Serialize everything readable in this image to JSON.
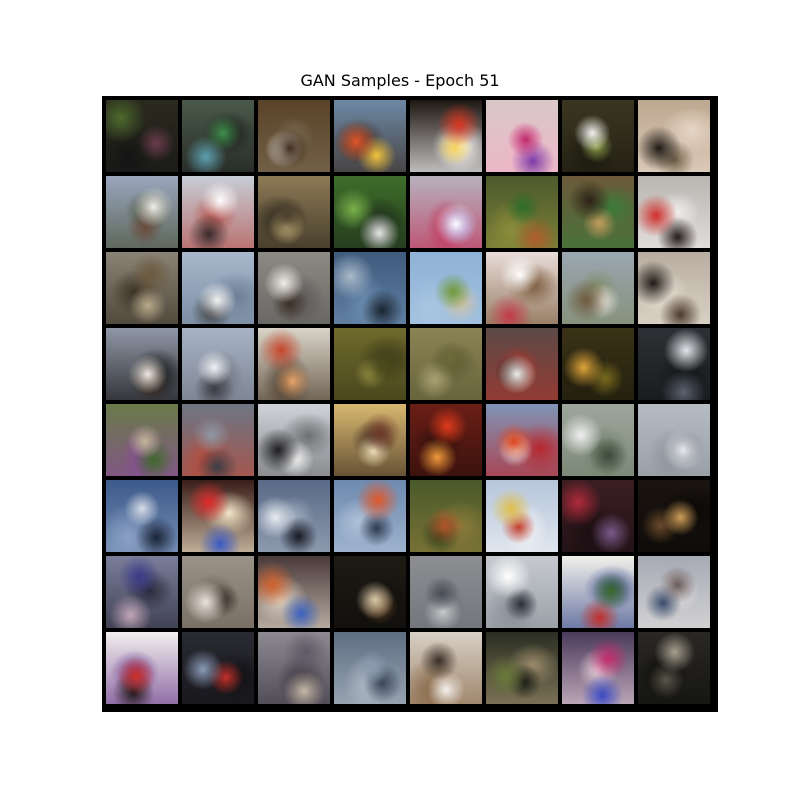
{
  "figure": {
    "title": "GAN Samples - Epoch 51"
  },
  "grid": {
    "rows": 8,
    "cols": 8,
    "frame_color": "#000000",
    "tiles": [
      {
        "name": "r1c1",
        "bg": "#2b2a1f",
        "c1": "#4d6a2c",
        "c2": "#6b3b4e",
        "c3": "#151515"
      },
      {
        "name": "r1c2",
        "bg": "#4a5a4a",
        "c1": "#3f8f4a",
        "c2": "#5da0b0",
        "c3": "#1c1c1c"
      },
      {
        "name": "r1c3",
        "bg": "#5a4328",
        "c1": "#3f2c1c",
        "c2": "#e9e7e2",
        "c3": "#7a6b53"
      },
      {
        "name": "r1c4",
        "bg": "#6d88a5",
        "c1": "#e0552b",
        "c2": "#f2c23a",
        "c3": "#3a2a1e"
      },
      {
        "name": "r1c5",
        "bg": "#1e1712",
        "c1": "#d9341f",
        "c2": "#f5d25a",
        "c3": "#ffffff"
      },
      {
        "name": "r1c6",
        "bg": "#d9c8c9",
        "c1": "#c02a6e",
        "c2": "#7d3aa8",
        "c3": "#f4b0c6"
      },
      {
        "name": "r1c7",
        "bg": "#3a3620",
        "c1": "#f3f2ef",
        "c2": "#8fa04a",
        "c3": "#1c1a10"
      },
      {
        "name": "r1c8",
        "bg": "#bda890",
        "c1": "#1e1914",
        "c2": "#6f6049",
        "c3": "#e6d6c6"
      },
      {
        "name": "r2c1",
        "bg": "#9aa6bd",
        "c1": "#f1eee8",
        "c2": "#6b4a3a",
        "c3": "#475037"
      },
      {
        "name": "r2c2",
        "bg": "#c7cdd6",
        "c1": "#ffffff",
        "c2": "#3a2a2a",
        "c3": "#b5514b"
      },
      {
        "name": "r2c3",
        "bg": "#8d7a55",
        "c1": "#4a3f2d",
        "c2": "#c7b17b",
        "c3": "#2d281d"
      },
      {
        "name": "r2c4",
        "bg": "#3e6e2a",
        "c1": "#79b14b",
        "c2": "#e6e6e6",
        "c3": "#1c2a1a"
      },
      {
        "name": "r2c5",
        "bg": "#b7b2bd",
        "c1": "#ffffff",
        "c2": "#6e45b6",
        "c3": "#c0325a"
      },
      {
        "name": "r2c6",
        "bg": "#4e5a2c",
        "c1": "#2d6d2a",
        "c2": "#b05c2e",
        "c3": "#8a8d3a"
      },
      {
        "name": "r2c7",
        "bg": "#6c5a3a",
        "c1": "#2e2216",
        "c2": "#c39d5e",
        "c3": "#3c7a3a"
      },
      {
        "name": "r2c8",
        "bg": "#b9b5b1",
        "c1": "#d1302c",
        "c2": "#231c1a",
        "c3": "#f0ecea"
      },
      {
        "name": "r3c1",
        "bg": "#8b8375",
        "c1": "#6b5a3d",
        "c2": "#b7a98a",
        "c3": "#3a3224"
      },
      {
        "name": "r3c2",
        "bg": "#a7b8cc",
        "c1": "#f2f2f2",
        "c2": "#3e3e3e",
        "c3": "#6d7f96"
      },
      {
        "name": "r3c3",
        "bg": "#8d8a84",
        "c1": "#f0ece6",
        "c2": "#3c3026",
        "c3": "#5c5a58"
      },
      {
        "name": "r3c4",
        "bg": "#3f5b7d",
        "c1": "#a9b9c9",
        "c2": "#1a2430",
        "c3": "#6c8db0"
      },
      {
        "name": "r3c5",
        "bg": "#8fb2d6",
        "c1": "#6f9a3a",
        "c2": "#d6c4a5",
        "c3": "#a8c6e2"
      },
      {
        "name": "r3c6",
        "bg": "#e8dcd8",
        "c1": "#ffffff",
        "c2": "#c23a4a",
        "c3": "#7a5a3a"
      },
      {
        "name": "r3c7",
        "bg": "#9ba6b2",
        "c1": "#6e5a3e",
        "c2": "#e5e0d6",
        "c3": "#7e8a66"
      },
      {
        "name": "r3c8",
        "bg": "#b8ada0",
        "c1": "#1e1a16",
        "c2": "#4a3a2c",
        "c3": "#e6ded2"
      },
      {
        "name": "r4c1",
        "bg": "#9097a6",
        "c1": "#efe9e2",
        "c2": "#3b2c22",
        "c3": "#101010"
      },
      {
        "name": "r4c2",
        "bg": "#a7b3c4",
        "c1": "#eef0f4",
        "c2": "#3c3c44",
        "c3": "#6e7482"
      },
      {
        "name": "r4c3",
        "bg": "#d9d4c8",
        "c1": "#c6452a",
        "c2": "#e8a46a",
        "c3": "#4a3a2a"
      },
      {
        "name": "r4c4",
        "bg": "#6f6a2c",
        "c1": "#4a4a1c",
        "c2": "#8e8a40",
        "c3": "#3c3a18"
      },
      {
        "name": "r4c5",
        "bg": "#8b8554",
        "c1": "#6e6a3a",
        "c2": "#a8a274",
        "c3": "#5a5632"
      },
      {
        "name": "r4c6",
        "bg": "#5c4a46",
        "c1": "#f0ece8",
        "c2": "#1e1a18",
        "c3": "#a8342c"
      },
      {
        "name": "r4c7",
        "bg": "#3a3216",
        "c1": "#e0a63a",
        "c2": "#7a6a1e",
        "c3": "#1c1a0c"
      },
      {
        "name": "r4c8",
        "bg": "#2d3034",
        "c1": "#e3e6ea",
        "c2": "#5a626e",
        "c3": "#121416"
      },
      {
        "name": "r5c1",
        "bg": "#6a7a4a",
        "c1": "#c2b898",
        "c2": "#3e6a2a",
        "c3": "#8a4a9a"
      },
      {
        "name": "r5c2",
        "bg": "#6d7684",
        "c1": "#8e98a6",
        "c2": "#3a3e46",
        "c3": "#b84a3a"
      },
      {
        "name": "r5c3",
        "bg": "#cfd2d6",
        "c1": "#1e1e20",
        "c2": "#f2f2f2",
        "c3": "#6e7074"
      },
      {
        "name": "r5c4",
        "bg": "#d8b870",
        "c1": "#6e3a2a",
        "c2": "#f0e0b8",
        "c3": "#3a2a1e"
      },
      {
        "name": "r5c5",
        "bg": "#6a1e16",
        "c1": "#e03a1c",
        "c2": "#f09a3a",
        "c3": "#2a0e0a"
      },
      {
        "name": "r5c6",
        "bg": "#8094b6",
        "c1": "#e0451c",
        "c2": "#f5f0ea",
        "c3": "#b8282e"
      },
      {
        "name": "r5c7",
        "bg": "#9ea69c",
        "c1": "#f0f0f0",
        "c2": "#3e4a3a",
        "c3": "#6e7e6a"
      },
      {
        "name": "r5c8",
        "bg": "#b6bcc4",
        "c1": "#e8eaee",
        "c2": "#5e646e",
        "c3": "#8e949c"
      },
      {
        "name": "r6c1",
        "bg": "#3c5a8a",
        "c1": "#d6dce6",
        "c2": "#1a2436",
        "c3": "#8aa0c4"
      },
      {
        "name": "r6c2",
        "bg": "#3a1e1a",
        "c1": "#e02a2a",
        "c2": "#3a5ac4",
        "c3": "#f2e6c8"
      },
      {
        "name": "r6c3",
        "bg": "#5a6a86",
        "c1": "#e6ecf2",
        "c2": "#161a22",
        "c3": "#a0acbe"
      },
      {
        "name": "r6c4",
        "bg": "#6e8ab0",
        "c1": "#e0572a",
        "c2": "#2e3a4e",
        "c3": "#b0c2d8"
      },
      {
        "name": "r6c5",
        "bg": "#4a5a2a",
        "c1": "#b2542a",
        "c2": "#2a3a18",
        "c3": "#8a7a3a"
      },
      {
        "name": "r6c6",
        "bg": "#b6c6da",
        "c1": "#e0bd4a",
        "c2": "#c03a2a",
        "c3": "#f0f2f6"
      },
      {
        "name": "r6c7",
        "bg": "#3a1e22",
        "c1": "#b02a3a",
        "c2": "#7a5a8a",
        "c3": "#1a0e12"
      },
      {
        "name": "r6c8",
        "bg": "#1a1410",
        "c1": "#d0a05a",
        "c2": "#6a4a2a",
        "c3": "#0a0806"
      },
      {
        "name": "r7c1",
        "bg": "#7a7e9a",
        "c1": "#3a3a8a",
        "c2": "#c2a6b8",
        "c3": "#2a2a3a"
      },
      {
        "name": "r7c2",
        "bg": "#9a9288",
        "c1": "#e8e2da",
        "c2": "#3a3028",
        "c3": "#6e6258"
      },
      {
        "name": "r7c3",
        "bg": "#4a3a3a",
        "c1": "#d0602a",
        "c2": "#3a62c0",
        "c3": "#e0d6c8"
      },
      {
        "name": "r7c4",
        "bg": "#1e1a14",
        "c1": "#d8c8a8",
        "c2": "#6a4a2a",
        "c3": "#0e0c0a"
      },
      {
        "name": "r7c5",
        "bg": "#8c8e92",
        "c1": "#4a4e56",
        "c2": "#c6c8ca",
        "c3": "#6a6e74"
      },
      {
        "name": "r7c6",
        "bg": "#c6cad0",
        "c1": "#ffffff",
        "c2": "#2a2e36",
        "c3": "#8a9098"
      },
      {
        "name": "r7c7",
        "bg": "#f0f0ea",
        "c1": "#3a6a2a",
        "c2": "#c0302a",
        "c3": "#3a4a8a"
      },
      {
        "name": "r7c8",
        "bg": "#a6aab4",
        "c1": "#6a5a5a",
        "c2": "#3a4a6a",
        "c3": "#e2e0de"
      },
      {
        "name": "r8c1",
        "bg": "#f2efee",
        "c1": "#d0302a",
        "c2": "#1e1616",
        "c3": "#6a3a8a"
      },
      {
        "name": "r8c2",
        "bg": "#2a2a32",
        "c1": "#8a9ab6",
        "c2": "#c0302a",
        "c3": "#101014"
      },
      {
        "name": "r8c3",
        "bg": "#8e8a92",
        "c1": "#5e5a66",
        "c2": "#c6b6a6",
        "c3": "#3a3640"
      },
      {
        "name": "r8c4",
        "bg": "#5e6e82",
        "c1": "#8a9aae",
        "c2": "#3a4658",
        "c3": "#aeb8c4"
      },
      {
        "name": "r8c5",
        "bg": "#d8d0c6",
        "c1": "#3a2e26",
        "c2": "#f6f2ee",
        "c3": "#8a6a4a"
      },
      {
        "name": "r8c6",
        "bg": "#2a2e22",
        "c1": "#6a7a3a",
        "c2": "#1a1c14",
        "c3": "#9a8a6a"
      },
      {
        "name": "r8c7",
        "bg": "#4a3a5a",
        "c1": "#c02a6a",
        "c2": "#3a4ac4",
        "c3": "#e8d0dc"
      },
      {
        "name": "r8c8",
        "bg": "#2a2824",
        "c1": "#a6a090",
        "c2": "#5a5648",
        "c3": "#0e0e0c"
      }
    ]
  }
}
